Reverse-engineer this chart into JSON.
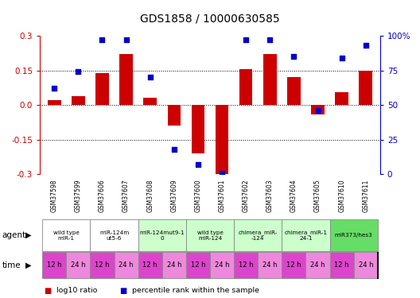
{
  "title": "GDS1858 / 10000630585",
  "samples": [
    "GSM37598",
    "GSM37599",
    "GSM37606",
    "GSM37607",
    "GSM37608",
    "GSM37609",
    "GSM37600",
    "GSM37601",
    "GSM37602",
    "GSM37603",
    "GSM37604",
    "GSM37605",
    "GSM37610",
    "GSM37611"
  ],
  "log10_ratio": [
    0.02,
    0.04,
    0.14,
    0.22,
    0.03,
    -0.09,
    -0.21,
    -0.3,
    0.155,
    0.22,
    0.12,
    -0.04,
    0.055,
    0.15
  ],
  "percentile_rank": [
    62,
    74,
    97,
    97,
    70,
    18,
    7,
    1,
    97,
    97,
    85,
    46,
    84,
    93
  ],
  "ylim": [
    -0.3,
    0.3
  ],
  "yticks_left": [
    -0.3,
    -0.15,
    0.0,
    0.15,
    0.3
  ],
  "yticks_right": [
    0,
    25,
    50,
    75,
    100
  ],
  "hlines": [
    -0.15,
    0.0,
    0.15
  ],
  "bar_color": "#cc0000",
  "dot_color": "#0000cc",
  "agent_groups": [
    {
      "label": "wild type\nmiR-1",
      "cols": [
        0,
        1
      ],
      "color": "#ffffff"
    },
    {
      "label": "miR-124m\nut5-6",
      "cols": [
        2,
        3
      ],
      "color": "#ffffff"
    },
    {
      "label": "miR-124mut9-1\n0",
      "cols": [
        4,
        5
      ],
      "color": "#ccffcc"
    },
    {
      "label": "wild type\nmiR-124",
      "cols": [
        6,
        7
      ],
      "color": "#ccffcc"
    },
    {
      "label": "chimera_miR-\n-124",
      "cols": [
        8,
        9
      ],
      "color": "#ccffcc"
    },
    {
      "label": "chimera_miR-1\n24-1",
      "cols": [
        10,
        11
      ],
      "color": "#ccffcc"
    },
    {
      "label": "miR373/hes3",
      "cols": [
        12,
        13
      ],
      "color": "#66dd66"
    }
  ],
  "time_colors_alt": [
    "#dd44cc",
    "#ee88dd"
  ],
  "bg_color": "#ffffff",
  "label_color_left": "#cc0000",
  "label_color_right": "#0000cc",
  "sample_bg": "#c8c8c8"
}
